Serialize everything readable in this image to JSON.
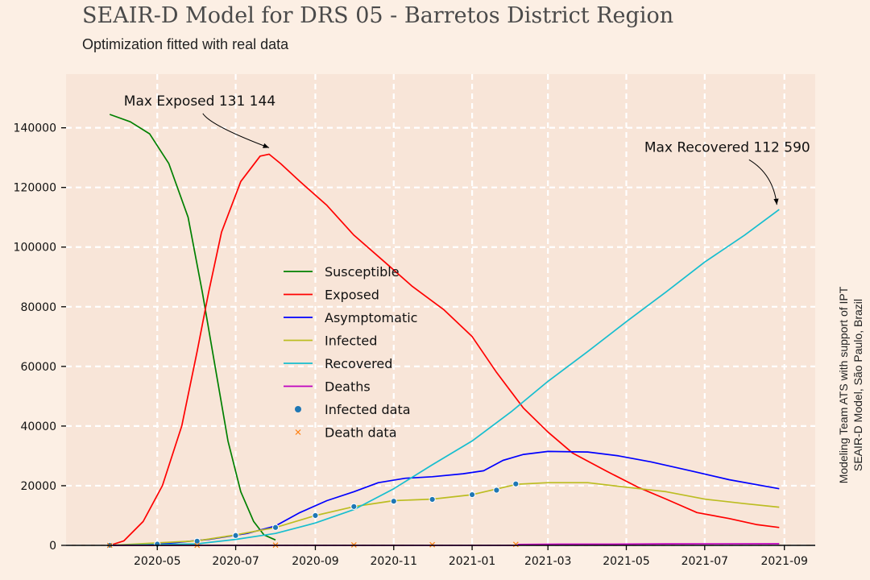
{
  "title": "SEAIR-D Model for DRS 05 - Barretos District Region",
  "subtitle": "Optimization fitted with real data",
  "side_note": {
    "line1": "Modeling Team ATS with support of IPT",
    "line2": "SEAIR-D Model, São Paulo, Brazil"
  },
  "colors": {
    "background": "#fcefe4",
    "plot_background": "#f8e5d8",
    "grid": "#ffffff"
  },
  "chart_data": {
    "type": "line",
    "title": "SEAIR-D Model for DRS 05 - Barretos District Region",
    "subtitle": "Optimization fitted with real data",
    "xlabel": "",
    "ylabel": "",
    "x_axis": "date",
    "xlim": [
      "2020-02-20",
      "2021-09-25"
    ],
    "ylim": [
      0,
      158000
    ],
    "grid": true,
    "legend_position": "center",
    "x_ticks": [
      "2020-05-01",
      "2020-07-01",
      "2020-09-01",
      "2020-11-01",
      "2021-01-01",
      "2021-03-01",
      "2021-05-01",
      "2021-07-01",
      "2021-09-01"
    ],
    "x_tick_labels": [
      "2020-05",
      "2020-07",
      "2020-09",
      "2020-11",
      "2021-01",
      "2021-03",
      "2021-05",
      "2021-07",
      "2021-09"
    ],
    "y_ticks": [
      0,
      20000,
      40000,
      60000,
      80000,
      100000,
      120000,
      140000
    ],
    "y_tick_labels": [
      "0",
      "20000",
      "40000",
      "60000",
      "80000",
      "100000",
      "120000",
      "140000"
    ],
    "series": [
      {
        "name": "Susceptible",
        "kind": "line",
        "color": "#008000",
        "points": [
          [
            "2020-03-25",
            144500
          ],
          [
            "2020-04-10",
            142000
          ],
          [
            "2020-04-25",
            138000
          ],
          [
            "2020-05-10",
            128000
          ],
          [
            "2020-05-25",
            110000
          ],
          [
            "2020-06-05",
            85000
          ],
          [
            "2020-06-15",
            60000
          ],
          [
            "2020-06-25",
            35000
          ],
          [
            "2020-07-05",
            18000
          ],
          [
            "2020-07-15",
            8000
          ],
          [
            "2020-07-23",
            3500
          ],
          [
            "2020-08-01",
            1800
          ]
        ]
      },
      {
        "name": "Exposed",
        "kind": "line",
        "color": "#ff0000",
        "points": [
          [
            "2020-03-25",
            0
          ],
          [
            "2020-04-05",
            1500
          ],
          [
            "2020-04-20",
            8000
          ],
          [
            "2020-05-05",
            20000
          ],
          [
            "2020-05-20",
            40000
          ],
          [
            "2020-06-01",
            65000
          ],
          [
            "2020-06-10",
            85000
          ],
          [
            "2020-06-20",
            105000
          ],
          [
            "2020-07-05",
            122000
          ],
          [
            "2020-07-20",
            130500
          ],
          [
            "2020-07-27",
            131144
          ],
          [
            "2020-08-05",
            128000
          ],
          [
            "2020-08-20",
            122000
          ],
          [
            "2020-09-10",
            114000
          ],
          [
            "2020-10-01",
            104000
          ],
          [
            "2020-10-25",
            95000
          ],
          [
            "2020-11-15",
            87000
          ],
          [
            "2020-12-10",
            79000
          ],
          [
            "2021-01-01",
            70000
          ],
          [
            "2021-01-20",
            58000
          ],
          [
            "2021-02-10",
            46000
          ],
          [
            "2021-03-01",
            38000
          ],
          [
            "2021-03-20",
            31000
          ],
          [
            "2021-04-15",
            25000
          ],
          [
            "2021-05-10",
            19500
          ],
          [
            "2021-06-01",
            15500
          ],
          [
            "2021-06-25",
            11000
          ],
          [
            "2021-07-20",
            9000
          ],
          [
            "2021-08-10",
            7000
          ],
          [
            "2021-08-28",
            6000
          ]
        ]
      },
      {
        "name": "Asymptomatic",
        "kind": "line",
        "color": "#0000ff",
        "points": [
          [
            "2020-03-25",
            0
          ],
          [
            "2020-05-10",
            700
          ],
          [
            "2020-06-10",
            2000
          ],
          [
            "2020-07-10",
            4000
          ],
          [
            "2020-08-01",
            6500
          ],
          [
            "2020-08-20",
            11000
          ],
          [
            "2020-09-10",
            15000
          ],
          [
            "2020-10-01",
            18000
          ],
          [
            "2020-10-20",
            21000
          ],
          [
            "2020-11-10",
            22500
          ],
          [
            "2020-12-01",
            23000
          ],
          [
            "2020-12-25",
            24000
          ],
          [
            "2021-01-10",
            25000
          ],
          [
            "2021-01-25",
            28500
          ],
          [
            "2021-02-10",
            30500
          ],
          [
            "2021-03-01",
            31500
          ],
          [
            "2021-04-01",
            31300
          ],
          [
            "2021-04-25",
            30000
          ],
          [
            "2021-05-20",
            28000
          ],
          [
            "2021-06-20",
            25000
          ],
          [
            "2021-07-20",
            22000
          ],
          [
            "2021-08-28",
            19000
          ]
        ]
      },
      {
        "name": "Infected",
        "kind": "line",
        "color": "#bcbd22",
        "points": [
          [
            "2020-03-25",
            0
          ],
          [
            "2020-06-01",
            1500
          ],
          [
            "2020-07-01",
            3500
          ],
          [
            "2020-08-01",
            6000
          ],
          [
            "2020-09-01",
            10000
          ],
          [
            "2020-10-01",
            13000
          ],
          [
            "2020-11-01",
            15000
          ],
          [
            "2020-12-01",
            15500
          ],
          [
            "2021-01-01",
            17000
          ],
          [
            "2021-02-05",
            20500
          ],
          [
            "2021-03-01",
            21000
          ],
          [
            "2021-04-01",
            21000
          ],
          [
            "2021-05-01",
            19500
          ],
          [
            "2021-06-01",
            18000
          ],
          [
            "2021-07-01",
            15500
          ],
          [
            "2021-08-01",
            14000
          ],
          [
            "2021-08-28",
            12800
          ]
        ]
      },
      {
        "name": "Recovered",
        "kind": "line",
        "color": "#17becf",
        "points": [
          [
            "2020-03-25",
            0
          ],
          [
            "2020-06-01",
            500
          ],
          [
            "2020-07-01",
            2000
          ],
          [
            "2020-08-01",
            4000
          ],
          [
            "2020-09-01",
            7500
          ],
          [
            "2020-10-01",
            12000
          ],
          [
            "2020-11-01",
            19000
          ],
          [
            "2020-12-01",
            27000
          ],
          [
            "2021-01-01",
            35000
          ],
          [
            "2021-02-01",
            45000
          ],
          [
            "2021-03-01",
            55000
          ],
          [
            "2021-04-01",
            65000
          ],
          [
            "2021-05-01",
            75000
          ],
          [
            "2021-06-01",
            85000
          ],
          [
            "2021-07-01",
            95000
          ],
          [
            "2021-08-01",
            104000
          ],
          [
            "2021-08-28",
            112590
          ]
        ]
      },
      {
        "name": "Deaths",
        "kind": "line",
        "color": "#bf00bf",
        "points": [
          [
            "2020-03-25",
            0
          ],
          [
            "2021-02-05",
            0
          ],
          [
            "2021-02-06",
            300
          ],
          [
            "2021-03-10",
            400
          ],
          [
            "2021-04-20",
            400
          ],
          [
            "2021-06-01",
            500
          ],
          [
            "2021-08-28",
            550
          ]
        ]
      },
      {
        "name": "Infected data",
        "kind": "scatter",
        "color": "#1f77b4",
        "points": [
          [
            "2020-03-25",
            50
          ],
          [
            "2020-05-01",
            400
          ],
          [
            "2020-06-01",
            1400
          ],
          [
            "2020-07-01",
            3300
          ],
          [
            "2020-08-01",
            6000
          ],
          [
            "2020-09-01",
            10000
          ],
          [
            "2020-10-01",
            13000
          ],
          [
            "2020-11-01",
            14800
          ],
          [
            "2020-12-01",
            15400
          ],
          [
            "2021-01-01",
            17000
          ],
          [
            "2021-01-20",
            18500
          ],
          [
            "2021-02-04",
            20600
          ]
        ]
      },
      {
        "name": "Death data",
        "kind": "scatter",
        "color": "#ff7f0e",
        "points": [
          [
            "2020-03-25",
            0
          ],
          [
            "2020-06-01",
            30
          ],
          [
            "2020-08-01",
            80
          ],
          [
            "2020-10-01",
            150
          ],
          [
            "2020-12-01",
            230
          ],
          [
            "2021-02-04",
            320
          ]
        ]
      }
    ],
    "annotations": [
      {
        "text": "Max Exposed 131 144",
        "x": "2020-07-27",
        "y": 131144,
        "text_x": "2020-04-05",
        "text_y": 147500
      },
      {
        "text": "Max Recovered 112 590",
        "x": "2021-08-28",
        "y": 112590,
        "text_x": "2021-05-15",
        "text_y": 132000
      }
    ]
  }
}
